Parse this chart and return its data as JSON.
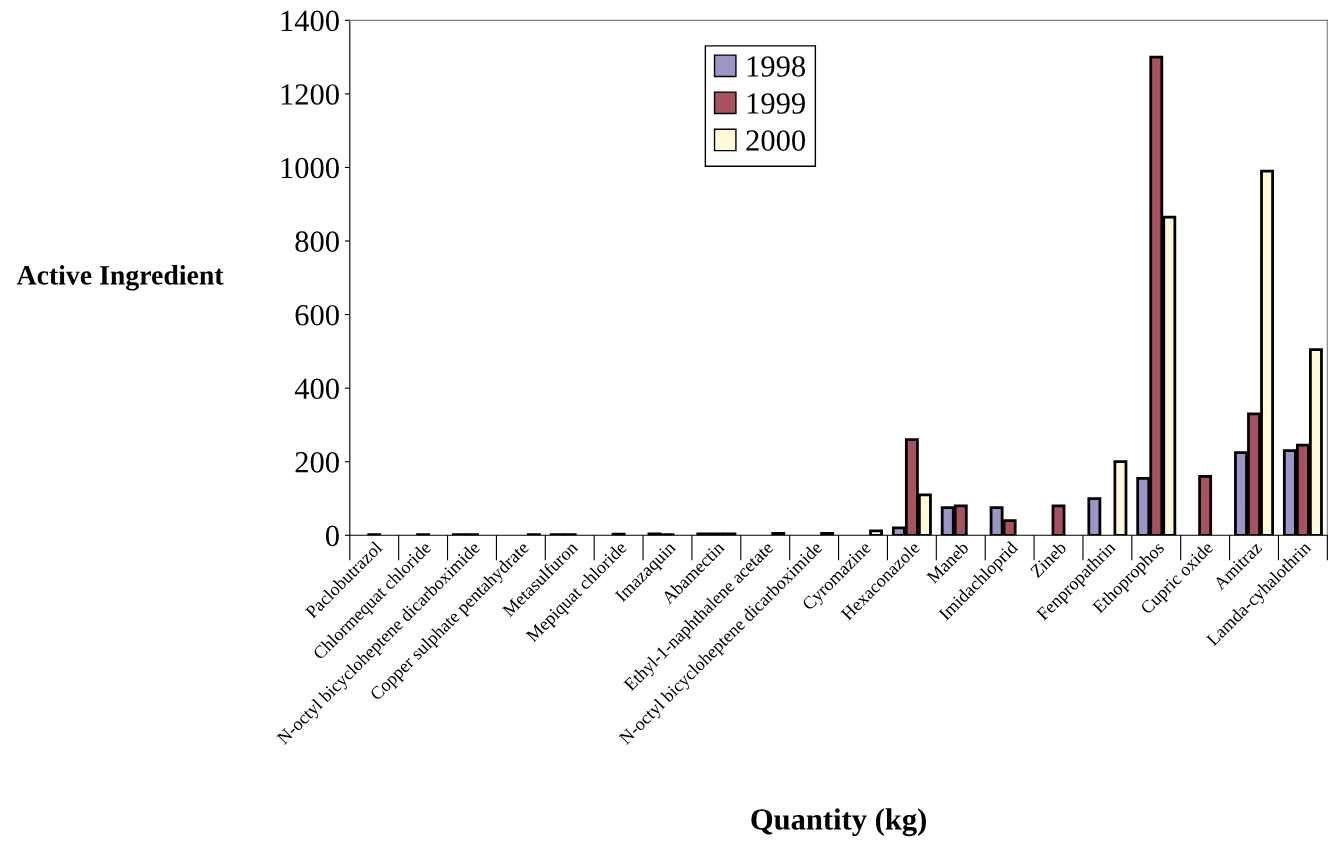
{
  "chart_data": {
    "type": "bar",
    "xlabel": "Quantity (kg)",
    "ylabel": "Active Ingredient",
    "categories": [
      "Paclobutrazol",
      "Chlormequat chloride",
      "N-octyl bicycloheptene dicarboximide",
      "Copper sulphate pentahydrate",
      "Metasulfuron",
      "Mepiquat chloride",
      "Imazaquin",
      "Abamectin",
      "Ethyl-1-naphthalene acetate",
      "N-octyl bicycloheptene dicarboximide",
      "Cyromazine",
      "Hexaconazole",
      "Maneb",
      "Imidachloprid",
      "Zineb",
      "Fenpropathrin",
      "Ethoprophos",
      "Cupric oxide",
      "Amitraz",
      "Lamda-cyhalothrin"
    ],
    "series": [
      {
        "name": "1998",
        "color": "#9c95c8",
        "values": [
          null,
          null,
          2,
          null,
          2,
          null,
          4,
          4,
          null,
          null,
          null,
          20,
          75,
          75,
          null,
          100,
          155,
          null,
          225,
          230
        ]
      },
      {
        "name": "1999",
        "color": "#a9525f",
        "values": [
          2,
          2,
          2,
          null,
          2,
          3,
          2,
          4,
          null,
          null,
          null,
          260,
          80,
          40,
          80,
          null,
          1300,
          160,
          330,
          245
        ]
      },
      {
        "name": "2000",
        "color": "#fffbd6",
        "values": [
          null,
          null,
          null,
          2,
          null,
          null,
          null,
          4,
          5,
          5,
          12,
          110,
          null,
          null,
          null,
          200,
          865,
          null,
          990,
          505
        ]
      }
    ],
    "ylim": [
      0,
      1400
    ],
    "yticks": [
      0,
      200,
      400,
      600,
      800,
      1000,
      1200,
      1400
    ],
    "grid": false,
    "legend": "top"
  }
}
